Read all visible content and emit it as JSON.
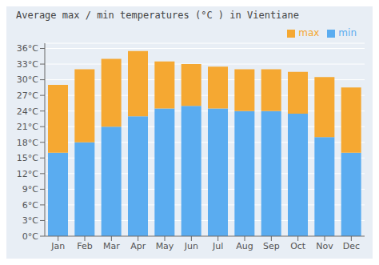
{
  "chart_data": {
    "type": "bar",
    "title": "Average max / min temperatures (°C ) in Vientiane",
    "categories": [
      "Jan",
      "Feb",
      "Mar",
      "Apr",
      "May",
      "Jun",
      "Jul",
      "Aug",
      "Sep",
      "Oct",
      "Nov",
      "Dec"
    ],
    "series": [
      {
        "name": "min",
        "color": "#5aacf0",
        "values": [
          16,
          18,
          21,
          23,
          24.5,
          25,
          24.5,
          24,
          24,
          23.5,
          19,
          16
        ]
      },
      {
        "name": "max",
        "color": "#f5a832",
        "values": [
          13,
          14,
          13,
          12.5,
          9,
          8,
          8,
          8,
          8,
          8,
          11.5,
          12.5
        ]
      }
    ],
    "stacked": true,
    "ylim": [
      0,
      37
    ],
    "yticks": [
      {
        "value": 0,
        "label": "0°C"
      },
      {
        "value": 3,
        "label": "3°C"
      },
      {
        "value": 6,
        "label": "6°C"
      },
      {
        "value": 9,
        "label": "9°C"
      },
      {
        "value": 12,
        "label": "12°C"
      },
      {
        "value": 15,
        "label": "15°C"
      },
      {
        "value": 18,
        "label": "18°C"
      },
      {
        "value": 21,
        "label": "21°C"
      },
      {
        "value": 24,
        "label": "24°C"
      },
      {
        "value": 27,
        "label": "27°C"
      },
      {
        "value": 30,
        "label": "30°C"
      },
      {
        "value": 33,
        "label": "33°C"
      },
      {
        "value": 36,
        "label": "36°C"
      }
    ],
    "grid": true,
    "legend": "upper right"
  }
}
